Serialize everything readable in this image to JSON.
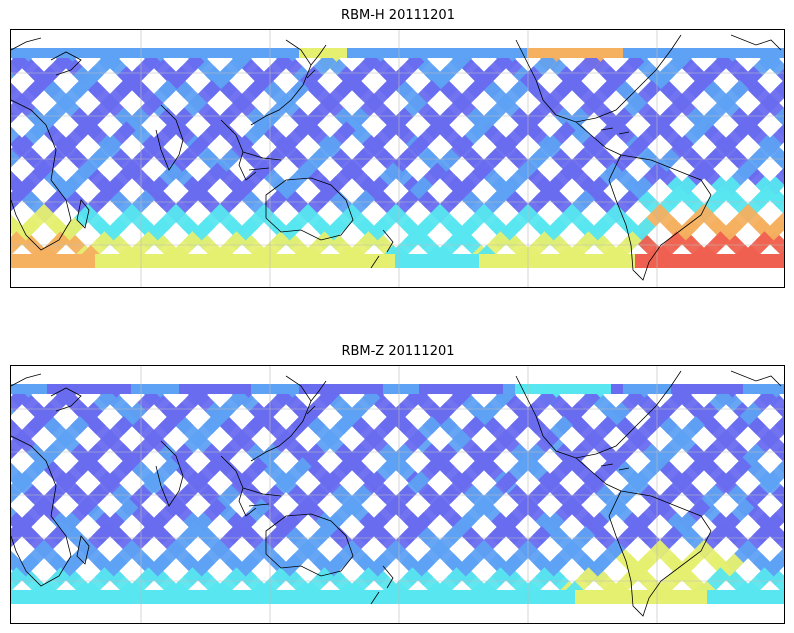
{
  "panels": [
    {
      "title": "RBM-H 20111201",
      "variant": "H"
    },
    {
      "title": "RBM-Z 20111201",
      "variant": "Z"
    }
  ],
  "colors": {
    "track_low": "#6a6cf0",
    "track_mid": "#5ea2f5",
    "cyan": "#58e6f0",
    "yellow": "#e6f070",
    "orange": "#f5b060",
    "red": "#f06050",
    "coast": "#000000",
    "grid": "#bbbbbb"
  }
}
